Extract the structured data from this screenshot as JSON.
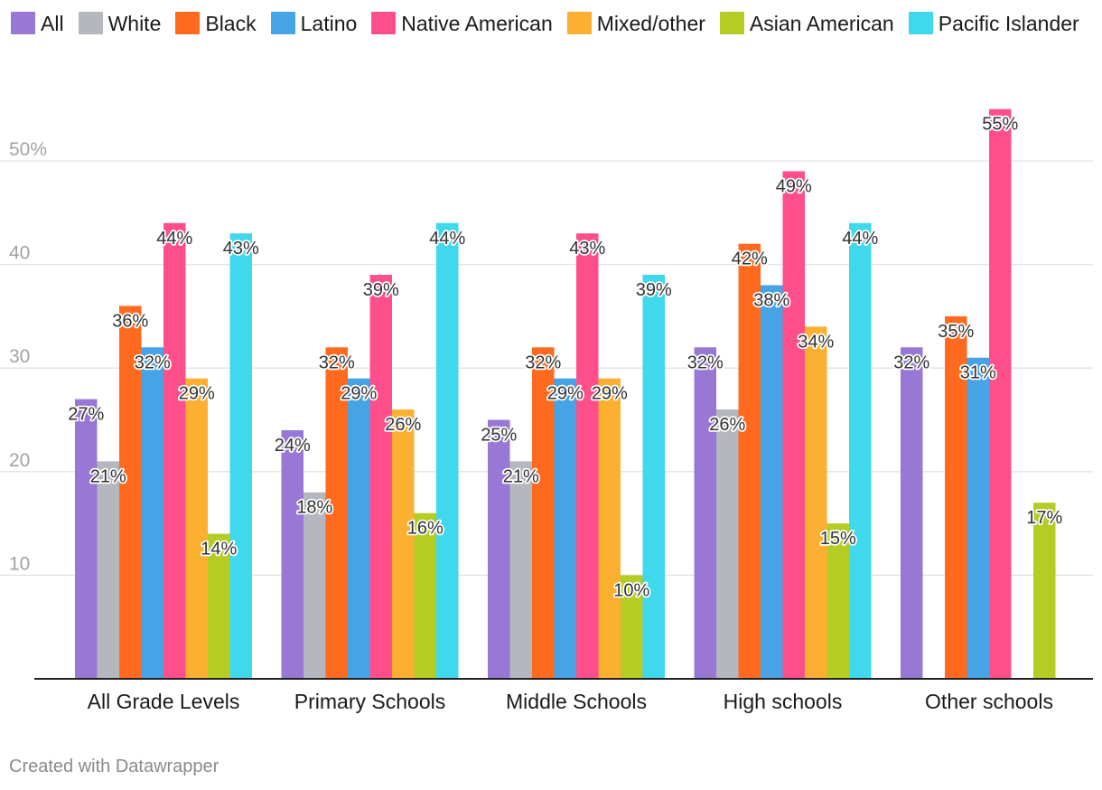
{
  "chart_data": {
    "type": "bar",
    "categories": [
      "All Grade Levels",
      "Primary Schools",
      "Middle Schools",
      "High schools",
      "Other schools"
    ],
    "series": [
      {
        "name": "All",
        "color": "#9878d4",
        "values": [
          27,
          24,
          25,
          32,
          32
        ]
      },
      {
        "name": "White",
        "color": "#b4b7bd",
        "values": [
          21,
          18,
          21,
          26,
          null
        ]
      },
      {
        "name": "Black",
        "color": "#ff6a1f",
        "values": [
          36,
          32,
          32,
          42,
          35
        ]
      },
      {
        "name": "Latino",
        "color": "#46a3e6",
        "values": [
          32,
          29,
          29,
          38,
          31
        ]
      },
      {
        "name": "Native American",
        "color": "#ff4f8a",
        "values": [
          44,
          39,
          43,
          49,
          55
        ]
      },
      {
        "name": "Mixed/other",
        "color": "#fbb032",
        "values": [
          29,
          26,
          29,
          34,
          null
        ]
      },
      {
        "name": "Asian American",
        "color": "#b5cc24",
        "values": [
          14,
          16,
          10,
          15,
          17
        ]
      },
      {
        "name": "Pacific Islander",
        "color": "#3fd8ec",
        "values": [
          43,
          44,
          39,
          44,
          null
        ]
      }
    ],
    "y_ticks": [
      {
        "value": 10,
        "label": "10"
      },
      {
        "value": 20,
        "label": "20"
      },
      {
        "value": 30,
        "label": "30"
      },
      {
        "value": 40,
        "label": "40"
      },
      {
        "value": 50,
        "label": "50%"
      }
    ],
    "ylim": [
      0,
      57
    ],
    "value_suffix": "%",
    "legend_position": "top",
    "grid": true
  },
  "footer": {
    "credit": "Created with Datawrapper"
  }
}
